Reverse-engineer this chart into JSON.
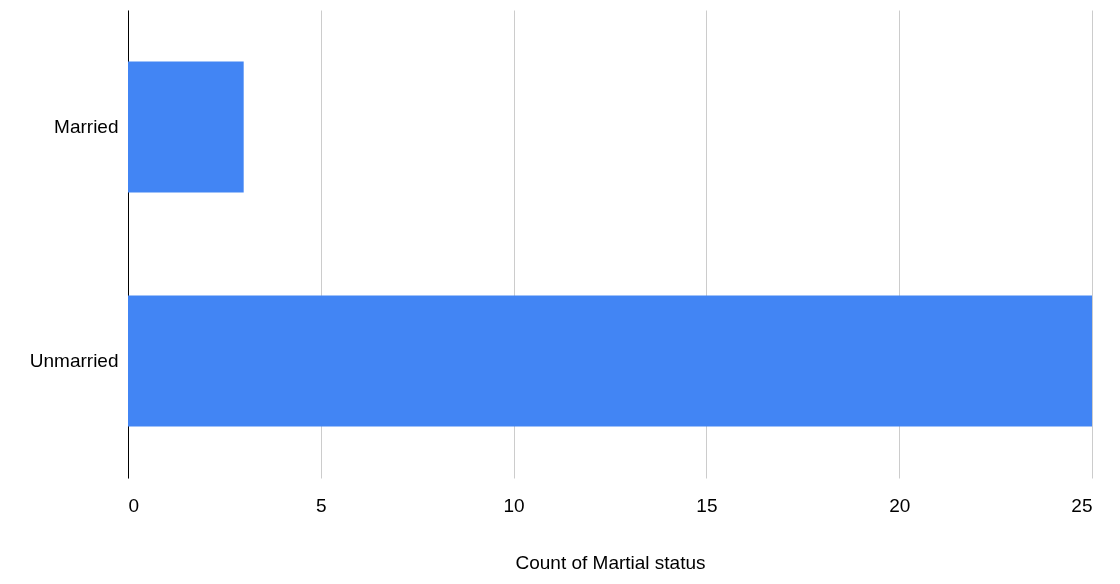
{
  "chart_data": {
    "type": "bar",
    "orientation": "horizontal",
    "categories": [
      "Married",
      "Unmarried"
    ],
    "values": [
      3,
      25
    ],
    "color": "#4285f4",
    "xlabel": "Count of Martial status",
    "xlim": [
      0,
      25
    ],
    "xticks": [
      0,
      5,
      10,
      15,
      20,
      25
    ],
    "grid": "x"
  }
}
